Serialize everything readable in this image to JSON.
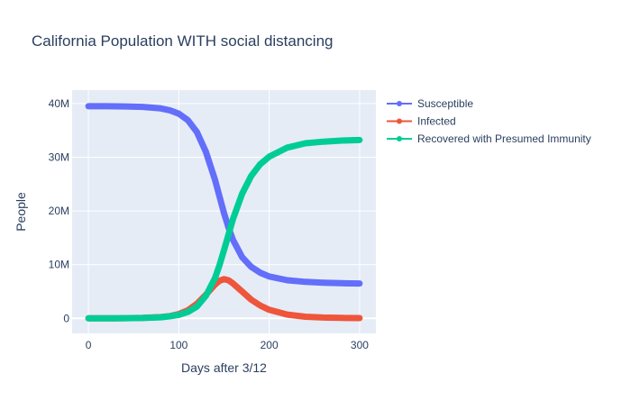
{
  "chart_data": {
    "type": "line",
    "title": "California Population WITH social distancing",
    "xlabel": "Days after 3/12",
    "ylabel": "People",
    "xlim": [
      -18,
      318
    ],
    "ylim": [
      -2800000,
      42500000
    ],
    "x_ticks": [
      {
        "value": 0,
        "label": "0"
      },
      {
        "value": 100,
        "label": "100"
      },
      {
        "value": 200,
        "label": "200"
      },
      {
        "value": 300,
        "label": "300"
      }
    ],
    "y_ticks": [
      {
        "value": 0,
        "label": "0"
      },
      {
        "value": 10000000,
        "label": "10M"
      },
      {
        "value": 20000000,
        "label": "20M"
      },
      {
        "value": 30000000,
        "label": "30M"
      },
      {
        "value": 40000000,
        "label": "40M"
      }
    ],
    "grid": true,
    "legend_position": "top-right",
    "x": [
      0,
      20,
      40,
      60,
      80,
      90,
      100,
      110,
      120,
      130,
      140,
      145,
      150,
      155,
      160,
      170,
      180,
      190,
      200,
      220,
      240,
      260,
      280,
      300
    ],
    "series": [
      {
        "name": "Susceptible",
        "color": "#636efa",
        "values": [
          39500000,
          39490000,
          39460000,
          39380000,
          39100000,
          38750000,
          38100000,
          36900000,
          34700000,
          31000000,
          25800000,
          22700000,
          19600000,
          16900000,
          14600000,
          11400000,
          9600000,
          8500000,
          7800000,
          7100000,
          6800000,
          6650000,
          6550000,
          6500000
        ]
      },
      {
        "name": "Infected",
        "color": "#ef553b",
        "values": [
          0,
          10000,
          30000,
          80000,
          230000,
          420000,
          800000,
          1500000,
          2700000,
          4400000,
          6300000,
          7000000,
          7300000,
          7100000,
          6500000,
          5000000,
          3500000,
          2400000,
          1600000,
          700000,
          300000,
          150000,
          80000,
          50000
        ]
      },
      {
        "name": "Recovered with Presumed Immunity",
        "color": "#00cc96",
        "values": [
          0,
          10000,
          30000,
          70000,
          200000,
          380000,
          650000,
          1200000,
          2200000,
          4200000,
          7500000,
          9900000,
          12700000,
          15600000,
          18500000,
          23200000,
          26500000,
          28700000,
          30100000,
          31800000,
          32600000,
          32900000,
          33100000,
          33200000
        ]
      }
    ]
  }
}
